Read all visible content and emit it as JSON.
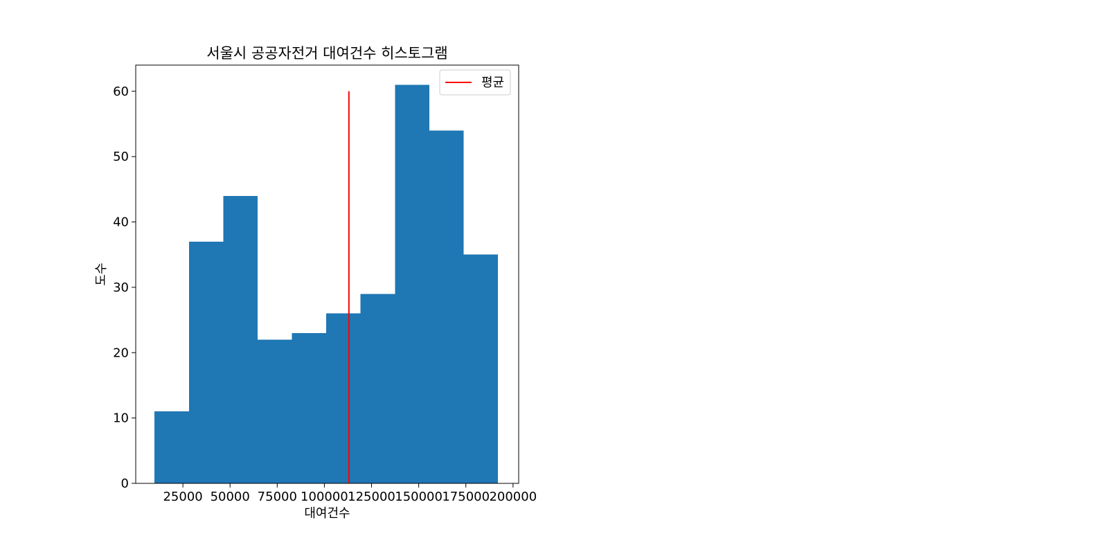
{
  "chart_data": {
    "type": "bar",
    "subtype": "histogram",
    "title": "서울시 공공자전거 대여건수 히스토그램",
    "xlabel": "대여건수",
    "ylabel": "도수",
    "bin_edges": [
      10000,
      28200,
      46400,
      64600,
      82800,
      101000,
      119200,
      137400,
      155600,
      173800,
      192000
    ],
    "counts": [
      11,
      37,
      44,
      22,
      23,
      26,
      29,
      61,
      54,
      35
    ],
    "xlim": [
      0,
      203000
    ],
    "ylim": [
      0,
      64
    ],
    "xticks": [
      25000,
      50000,
      75000,
      100000,
      125000,
      150000,
      175000,
      200000
    ],
    "xtick_labels": [
      "25000",
      "50000",
      "75000",
      "100000",
      "125000",
      "150000",
      "175000",
      "200000"
    ],
    "yticks": [
      0,
      10,
      20,
      30,
      40,
      50,
      60
    ],
    "ytick_labels": [
      "0",
      "10",
      "20",
      "30",
      "40",
      "50",
      "60"
    ],
    "bar_color": "#1f77b4",
    "mean_line": {
      "label": "평균",
      "x": 113000,
      "y_range": [
        0,
        60
      ],
      "color": "#ff0000"
    },
    "legend_position": "top-right",
    "grid": false
  }
}
